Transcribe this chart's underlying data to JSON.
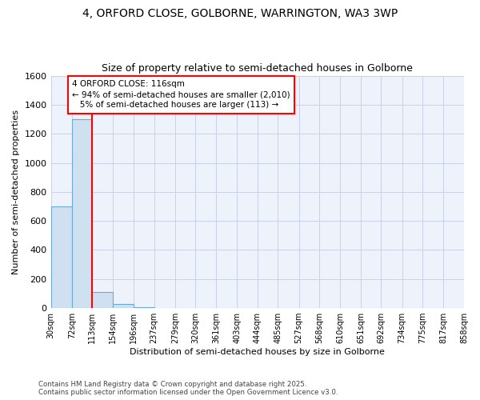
{
  "title1": "4, ORFORD CLOSE, GOLBORNE, WARRINGTON, WA3 3WP",
  "title2": "Size of property relative to semi-detached houses in Golborne",
  "xlabel": "Distribution of semi-detached houses by size in Golborne",
  "ylabel": "Number of semi-detached properties",
  "bins": [
    30,
    72,
    113,
    154,
    196,
    237,
    279,
    320,
    361,
    403,
    444,
    485,
    527,
    568,
    610,
    651,
    692,
    734,
    775,
    817,
    858
  ],
  "values": [
    700,
    1300,
    113,
    30,
    5,
    2,
    1,
    1,
    0,
    0,
    0,
    0,
    0,
    0,
    0,
    0,
    0,
    0,
    0,
    0
  ],
  "bar_color": "#cfe0f0",
  "bar_edge_color": "#6aaad4",
  "vline_x": 113,
  "vline_color": "red",
  "annotation_line1": "4 ORFORD CLOSE: 116sqm",
  "annotation_line2": "← 94% of semi-detached houses are smaller (2,010)",
  "annotation_line3": "   5% of semi-detached houses are larger (113) →",
  "annotation_box_color": "white",
  "annotation_box_edge": "red",
  "ylim": [
    0,
    1600
  ],
  "yticks": [
    0,
    200,
    400,
    600,
    800,
    1000,
    1200,
    1400,
    1600
  ],
  "footer": "Contains HM Land Registry data © Crown copyright and database right 2025.\nContains public sector information licensed under the Open Government Licence v3.0.",
  "bg_color": "#eef2fb",
  "grid_color": "#c8d0e8",
  "plot_bg_color": "#eef2fb"
}
